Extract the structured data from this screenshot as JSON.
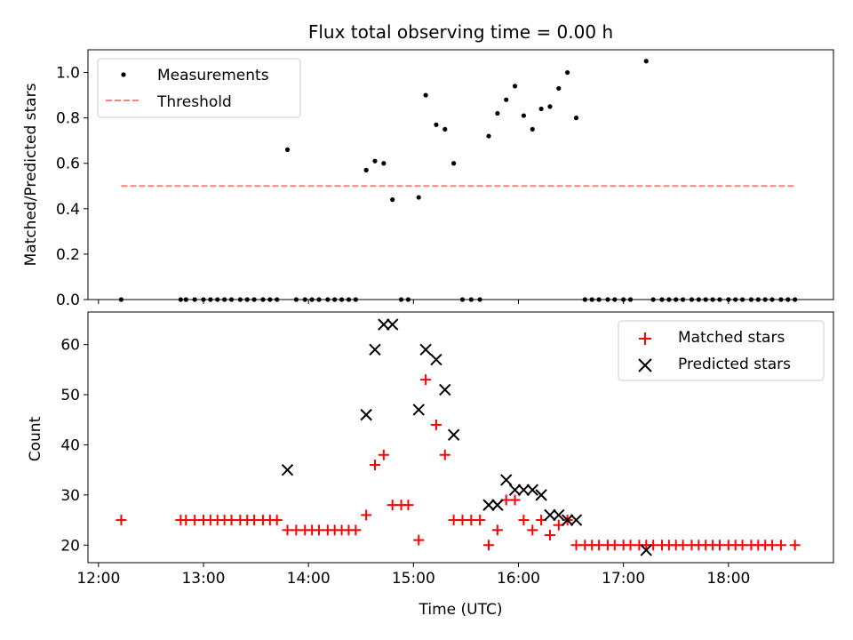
{
  "figure": {
    "title": "Flux total observing time = 0.00 h"
  },
  "chart_data": [
    {
      "type": "scatter",
      "title": "Flux total observing time = 0.00 h",
      "xlabel": "",
      "ylabel": "Matched/Predicted stars",
      "xlim": [
        "11:54",
        "19:00"
      ],
      "ylim": [
        0,
        1.1
      ],
      "grid": false,
      "legend_position": "upper left",
      "x_ticks": [
        "12:00",
        "13:00",
        "14:00",
        "15:00",
        "16:00",
        "17:00",
        "18:00"
      ],
      "y_ticks": [
        "0.0",
        "0.2",
        "0.4",
        "0.6",
        "0.8",
        "1.0"
      ],
      "series": [
        {
          "name": "Measurements",
          "kind": "points",
          "color": "#000000",
          "points": [
            [
              "12:13",
              0.0
            ],
            [
              "12:47",
              0.0
            ],
            [
              "12:50",
              0.0
            ],
            [
              "12:55",
              0.0
            ],
            [
              "13:00",
              0.0
            ],
            [
              "13:04",
              0.0
            ],
            [
              "13:08",
              0.0
            ],
            [
              "13:12",
              0.0
            ],
            [
              "13:16",
              0.0
            ],
            [
              "13:21",
              0.0
            ],
            [
              "13:25",
              0.0
            ],
            [
              "13:29",
              0.0
            ],
            [
              "13:34",
              0.0
            ],
            [
              "13:38",
              0.0
            ],
            [
              "13:42",
              0.0
            ],
            [
              "13:48",
              0.66
            ],
            [
              "13:53",
              0.0
            ],
            [
              "13:58",
              0.0
            ],
            [
              "14:02",
              0.0
            ],
            [
              "14:06",
              0.0
            ],
            [
              "14:11",
              0.0
            ],
            [
              "14:15",
              0.0
            ],
            [
              "14:19",
              0.0
            ],
            [
              "14:23",
              0.0
            ],
            [
              "14:27",
              0.0
            ],
            [
              "14:33",
              0.57
            ],
            [
              "14:38",
              0.61
            ],
            [
              "14:43",
              0.6
            ],
            [
              "14:48",
              0.44
            ],
            [
              "14:53",
              0.0
            ],
            [
              "14:57",
              0.0
            ],
            [
              "15:03",
              0.45
            ],
            [
              "15:07",
              0.9
            ],
            [
              "15:13",
              0.77
            ],
            [
              "15:18",
              0.75
            ],
            [
              "15:23",
              0.6
            ],
            [
              "15:28",
              0.0
            ],
            [
              "15:33",
              0.0
            ],
            [
              "15:38",
              0.0
            ],
            [
              "15:43",
              0.72
            ],
            [
              "15:48",
              0.82
            ],
            [
              "15:53",
              0.88
            ],
            [
              "15:58",
              0.94
            ],
            [
              "16:03",
              0.81
            ],
            [
              "16:08",
              0.75
            ],
            [
              "16:13",
              0.84
            ],
            [
              "16:18",
              0.85
            ],
            [
              "16:23",
              0.93
            ],
            [
              "16:28",
              1.0
            ],
            [
              "16:33",
              0.8
            ],
            [
              "16:38",
              0.0
            ],
            [
              "16:42",
              0.0
            ],
            [
              "16:46",
              0.0
            ],
            [
              "16:51",
              0.0
            ],
            [
              "16:55",
              0.0
            ],
            [
              "17:00",
              0.0
            ],
            [
              "17:04",
              0.0
            ],
            [
              "17:13",
              1.05
            ],
            [
              "17:17",
              0.0
            ],
            [
              "17:22",
              0.0
            ],
            [
              "17:26",
              0.0
            ],
            [
              "17:30",
              0.0
            ],
            [
              "17:34",
              0.0
            ],
            [
              "17:39",
              0.0
            ],
            [
              "17:43",
              0.0
            ],
            [
              "17:47",
              0.0
            ],
            [
              "17:51",
              0.0
            ],
            [
              "17:55",
              0.0
            ],
            [
              "18:00",
              0.0
            ],
            [
              "18:04",
              0.0
            ],
            [
              "18:08",
              0.0
            ],
            [
              "18:13",
              0.0
            ],
            [
              "18:17",
              0.0
            ],
            [
              "18:21",
              0.0
            ],
            [
              "18:25",
              0.0
            ],
            [
              "18:30",
              0.0
            ],
            [
              "18:34",
              0.0
            ],
            [
              "18:38",
              0.0
            ]
          ]
        },
        {
          "name": "Threshold",
          "kind": "dashed-line",
          "color": "#ff7f7f",
          "points": [
            [
              "12:13",
              0.5
            ],
            [
              "18:38",
              0.5
            ]
          ]
        }
      ]
    },
    {
      "type": "scatter",
      "title": "",
      "xlabel": "Time (UTC)",
      "ylabel": "Count",
      "xlim": [
        "11:54",
        "19:00"
      ],
      "ylim": [
        16.5,
        66.5
      ],
      "grid": false,
      "legend_position": "upper right",
      "x_ticks": [
        "12:00",
        "13:00",
        "14:00",
        "15:00",
        "16:00",
        "17:00",
        "18:00"
      ],
      "y_ticks": [
        "20",
        "30",
        "40",
        "50",
        "60"
      ],
      "series": [
        {
          "name": "Matched stars",
          "kind": "plus",
          "color": "#ff0000",
          "points": [
            [
              "12:13",
              25
            ],
            [
              "12:47",
              25
            ],
            [
              "12:50",
              25
            ],
            [
              "12:55",
              25
            ],
            [
              "13:00",
              25
            ],
            [
              "13:04",
              25
            ],
            [
              "13:08",
              25
            ],
            [
              "13:12",
              25
            ],
            [
              "13:16",
              25
            ],
            [
              "13:21",
              25
            ],
            [
              "13:25",
              25
            ],
            [
              "13:29",
              25
            ],
            [
              "13:34",
              25
            ],
            [
              "13:38",
              25
            ],
            [
              "13:42",
              25
            ],
            [
              "13:48",
              23
            ],
            [
              "13:53",
              23
            ],
            [
              "13:58",
              23
            ],
            [
              "14:02",
              23
            ],
            [
              "14:06",
              23
            ],
            [
              "14:11",
              23
            ],
            [
              "14:15",
              23
            ],
            [
              "14:19",
              23
            ],
            [
              "14:23",
              23
            ],
            [
              "14:27",
              23
            ],
            [
              "14:33",
              26
            ],
            [
              "14:38",
              36
            ],
            [
              "14:43",
              38
            ],
            [
              "14:48",
              28
            ],
            [
              "14:53",
              28
            ],
            [
              "14:57",
              28
            ],
            [
              "15:03",
              21
            ],
            [
              "15:07",
              53
            ],
            [
              "15:13",
              44
            ],
            [
              "15:18",
              38
            ],
            [
              "15:23",
              25
            ],
            [
              "15:28",
              25
            ],
            [
              "15:33",
              25
            ],
            [
              "15:38",
              25
            ],
            [
              "15:43",
              20
            ],
            [
              "15:48",
              23
            ],
            [
              "15:53",
              29
            ],
            [
              "15:58",
              29
            ],
            [
              "16:03",
              25
            ],
            [
              "16:08",
              23
            ],
            [
              "16:13",
              25
            ],
            [
              "16:18",
              22
            ],
            [
              "16:23",
              24
            ],
            [
              "16:28",
              25
            ],
            [
              "16:33",
              20
            ],
            [
              "16:38",
              20
            ],
            [
              "16:42",
              20
            ],
            [
              "16:46",
              20
            ],
            [
              "16:51",
              20
            ],
            [
              "16:55",
              20
            ],
            [
              "17:00",
              20
            ],
            [
              "17:04",
              20
            ],
            [
              "17:09",
              20
            ],
            [
              "17:13",
              20
            ],
            [
              "17:17",
              20
            ],
            [
              "17:22",
              20
            ],
            [
              "17:26",
              20
            ],
            [
              "17:30",
              20
            ],
            [
              "17:34",
              20
            ],
            [
              "17:39",
              20
            ],
            [
              "17:43",
              20
            ],
            [
              "17:47",
              20
            ],
            [
              "17:51",
              20
            ],
            [
              "17:55",
              20
            ],
            [
              "18:00",
              20
            ],
            [
              "18:04",
              20
            ],
            [
              "18:08",
              20
            ],
            [
              "18:13",
              20
            ],
            [
              "18:17",
              20
            ],
            [
              "18:21",
              20
            ],
            [
              "18:25",
              20
            ],
            [
              "18:30",
              20
            ],
            [
              "18:38",
              20
            ]
          ]
        },
        {
          "name": "Predicted stars",
          "kind": "x",
          "color": "#000000",
          "points": [
            [
              "13:48",
              35
            ],
            [
              "14:33",
              46
            ],
            [
              "14:38",
              59
            ],
            [
              "14:43",
              64
            ],
            [
              "14:48",
              64
            ],
            [
              "15:03",
              47
            ],
            [
              "15:07",
              59
            ],
            [
              "15:13",
              57
            ],
            [
              "15:18",
              51
            ],
            [
              "15:23",
              42
            ],
            [
              "15:43",
              28
            ],
            [
              "15:48",
              28
            ],
            [
              "15:53",
              33
            ],
            [
              "15:58",
              31
            ],
            [
              "16:03",
              31
            ],
            [
              "16:08",
              31
            ],
            [
              "16:13",
              30
            ],
            [
              "16:18",
              26
            ],
            [
              "16:23",
              26
            ],
            [
              "16:28",
              25
            ],
            [
              "16:33",
              25
            ],
            [
              "17:13",
              19
            ]
          ]
        }
      ]
    }
  ]
}
